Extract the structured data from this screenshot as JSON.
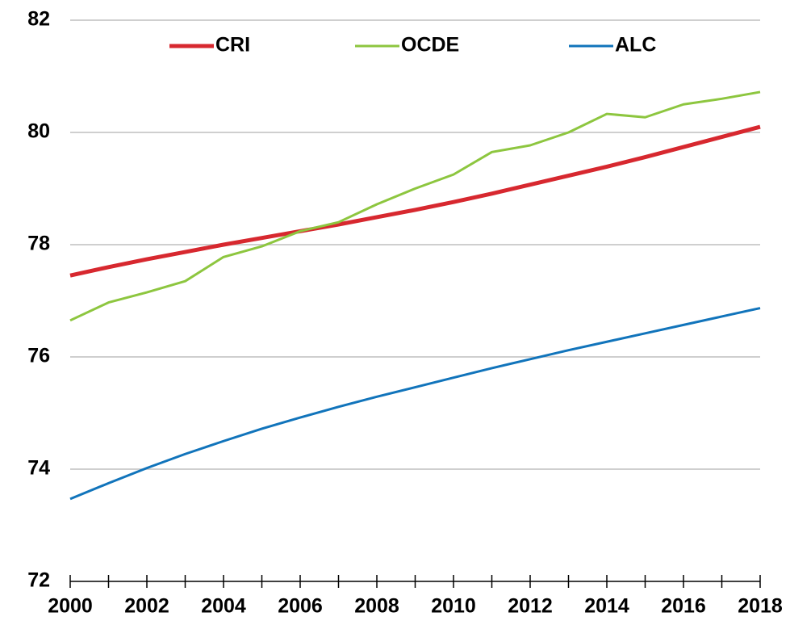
{
  "chart_data": {
    "type": "line",
    "x": [
      2000,
      2001,
      2002,
      2003,
      2004,
      2005,
      2006,
      2007,
      2008,
      2009,
      2010,
      2011,
      2012,
      2013,
      2014,
      2015,
      2016,
      2017,
      2018
    ],
    "series": [
      {
        "name": "CRI",
        "color": "#d7282f",
        "values": [
          77.45,
          77.6,
          77.74,
          77.87,
          78.0,
          78.12,
          78.24,
          78.36,
          78.49,
          78.62,
          78.76,
          78.91,
          79.07,
          79.23,
          79.39,
          79.56,
          79.74,
          79.92,
          80.1
        ]
      },
      {
        "name": "OCDE",
        "color": "#8dc63f",
        "values": [
          76.65,
          76.97,
          77.15,
          77.35,
          77.78,
          77.97,
          78.24,
          78.4,
          78.72,
          79.0,
          79.25,
          79.65,
          79.77,
          80.0,
          80.33,
          80.27,
          80.5,
          80.6,
          80.72
        ]
      },
      {
        "name": "ALC",
        "color": "#1174bb",
        "values": [
          73.47,
          73.75,
          74.02,
          74.27,
          74.5,
          74.72,
          74.92,
          75.11,
          75.29,
          75.46,
          75.63,
          75.8,
          75.96,
          76.12,
          76.27,
          76.42,
          76.57,
          76.72,
          76.87
        ]
      }
    ],
    "xlim": [
      2000,
      2018
    ],
    "xticks": [
      2000,
      2002,
      2004,
      2006,
      2008,
      2010,
      2012,
      2014,
      2016,
      2018
    ],
    "ylim": [
      72,
      82
    ],
    "yticks": [
      72,
      74,
      76,
      78,
      80,
      82
    ],
    "grid": true,
    "legend": "top"
  }
}
